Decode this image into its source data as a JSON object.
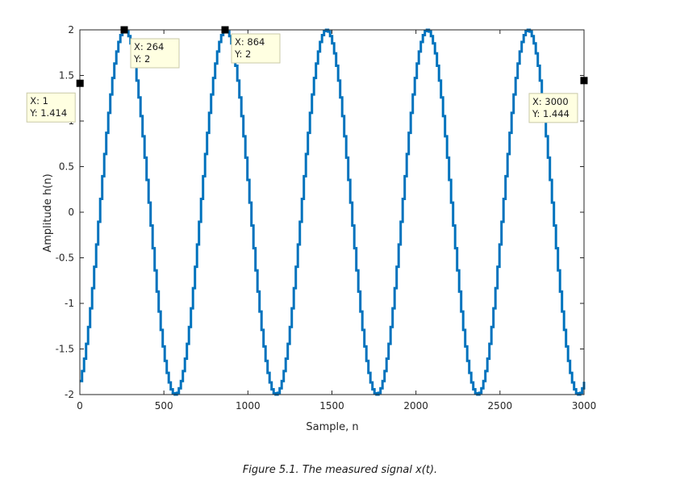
{
  "caption": "Figure 5.1. The measured signal x(t).",
  "chart_data": {
    "type": "line",
    "xlabel": "Sample, n",
    "ylabel": "Amplitude h(n)",
    "xlim": [
      0,
      3000
    ],
    "ylim": [
      -2,
      2
    ],
    "xticks": [
      "0",
      "500",
      "1000",
      "1500",
      "2000",
      "2500",
      "3000"
    ],
    "yticks": [
      "-2",
      "-1.5",
      "-1",
      "-0.5",
      "0",
      "0.5",
      "1",
      "1.5",
      "2"
    ],
    "grid": false,
    "line_color": "#0072BD",
    "series": [
      {
        "amplitude": 2,
        "period_samples": 600,
        "peak_at": 264,
        "n_start": 1,
        "n_end": 3000
      }
    ],
    "datatips": [
      {
        "x": 1,
        "y": 1.414,
        "label_x": "X: 1",
        "label_y": "Y: 1.414"
      },
      {
        "x": 264,
        "y": 2,
        "label_x": "X: 264",
        "label_y": "Y: 2"
      },
      {
        "x": 864,
        "y": 2,
        "label_x": "X: 864",
        "label_y": "Y: 2"
      },
      {
        "x": 3000,
        "y": 1.444,
        "label_x": "X: 3000",
        "label_y": "Y: 1.444"
      }
    ]
  }
}
